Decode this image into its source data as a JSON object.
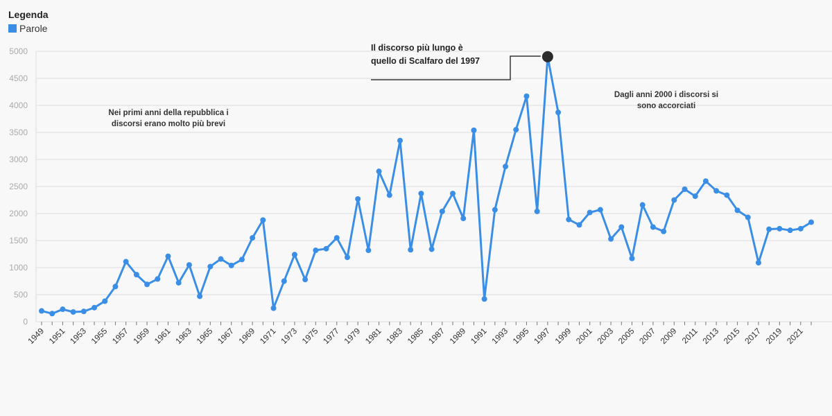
{
  "legend": {
    "title": "Legenda",
    "series_label": "Parole",
    "color": "#3a8ee6"
  },
  "colors": {
    "line": "#3a8ee6",
    "highlight": "#2b2b2b",
    "grid": "#e6e6e9"
  },
  "chart_data": {
    "type": "line",
    "xlabel": "",
    "ylabel": "",
    "ylim": [
      0,
      5000
    ],
    "yticks": [
      0,
      500,
      1000,
      1500,
      2000,
      2500,
      3000,
      3500,
      4000,
      4500,
      5000
    ],
    "xtick_labels": [
      "1949",
      "1951",
      "1953",
      "1955",
      "1957",
      "1959",
      "1961",
      "1963",
      "1965",
      "1967",
      "1969",
      "1971",
      "1973",
      "1975",
      "1977",
      "1979",
      "1981",
      "1983",
      "1985",
      "1987",
      "1989",
      "1991",
      "1993",
      "1995",
      "1997",
      "1999",
      "2001",
      "2003",
      "2005",
      "2007",
      "2009",
      "2011",
      "2013",
      "2015",
      "2017",
      "2019",
      "2021"
    ],
    "grid": true,
    "legend_position": "top-left",
    "series": [
      {
        "name": "Parole",
        "x": [
          1949,
          1950,
          1951,
          1952,
          1953,
          1954,
          1955,
          1956,
          1957,
          1958,
          1959,
          1960,
          1961,
          1962,
          1963,
          1964,
          1965,
          1966,
          1967,
          1968,
          1969,
          1970,
          1971,
          1972,
          1973,
          1974,
          1975,
          1976,
          1977,
          1978,
          1979,
          1980,
          1981,
          1982,
          1983,
          1984,
          1985,
          1986,
          1987,
          1988,
          1989,
          1990,
          1991,
          1992,
          1993,
          1994,
          1995,
          1996,
          1997,
          1998,
          1999,
          2000,
          2001,
          2002,
          2003,
          2004,
          2005,
          2006,
          2007,
          2008,
          2009,
          2010,
          2011,
          2012,
          2013,
          2014,
          2015,
          2016,
          2017,
          2018,
          2019,
          2020,
          2021,
          2022
        ],
        "values": [
          200,
          150,
          230,
          180,
          190,
          260,
          380,
          650,
          1110,
          870,
          690,
          790,
          1210,
          720,
          1050,
          470,
          1020,
          1160,
          1040,
          1150,
          1550,
          1880,
          250,
          750,
          1240,
          780,
          1320,
          1350,
          1550,
          1190,
          2270,
          1320,
          2780,
          2340,
          3350,
          1330,
          2370,
          1340,
          2040,
          2370,
          1910,
          3540,
          420,
          2070,
          2870,
          3550,
          4170,
          2040,
          4900,
          3870,
          1890,
          1790,
          2020,
          2070,
          1530,
          1750,
          1170,
          2160,
          1750,
          1670,
          2250,
          2450,
          2320,
          2600,
          2420,
          2340,
          2060,
          1930,
          1090,
          1710,
          1720,
          1690,
          1720,
          1840
        ]
      }
    ],
    "highlight": {
      "x": 1997,
      "value": 4900
    },
    "annotations": [
      {
        "id": "early",
        "lines": [
          "Nei primi anni della repubblica i",
          "discorsi erano molto più brevi"
        ]
      },
      {
        "id": "peak",
        "lines": [
          "Il discorso più lungo è",
          "quello di Scalfaro del 1997"
        ]
      },
      {
        "id": "recent",
        "lines": [
          "Dagli anni 2000 i discorsi si",
          "sono accorciati"
        ]
      }
    ]
  }
}
